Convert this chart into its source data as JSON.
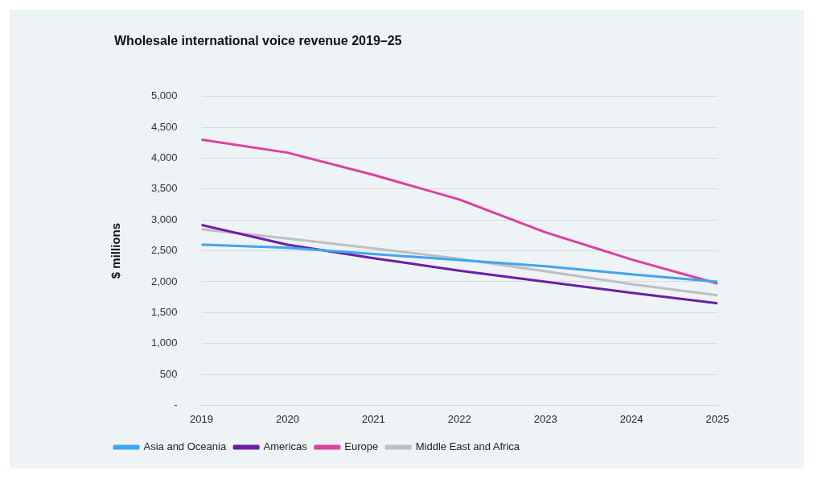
{
  "chart_data": {
    "type": "line",
    "title": "Wholesale international voice revenue 2019–25",
    "ylabel": "$ millions",
    "categories": [
      "2019",
      "2020",
      "2021",
      "2022",
      "2023",
      "2024",
      "2025"
    ],
    "series": [
      {
        "name": "Asia and Oceania",
        "color": "#3ea6f0",
        "values": [
          2600,
          2550,
          2450,
          2350,
          2250,
          2120,
          2000
        ]
      },
      {
        "name": "Americas",
        "color": "#6a1fa6",
        "values": [
          2920,
          2600,
          2380,
          2180,
          2000,
          1820,
          1650
        ]
      },
      {
        "name": "Europe",
        "color": "#e03ea0",
        "values": [
          4300,
          4090,
          3730,
          3330,
          2800,
          2360,
          1970
        ]
      },
      {
        "name": "Middle East and Africa",
        "color": "#bfbfbf",
        "values": [
          2850,
          2700,
          2540,
          2370,
          2170,
          1960,
          1780
        ]
      }
    ],
    "ylim": [
      0,
      5000
    ],
    "yticks": [
      {
        "value": 0,
        "label": "-"
      },
      500,
      {
        "value": 1000,
        "label": "1,000"
      },
      {
        "value": 1500,
        "label": "1,500"
      },
      {
        "value": 2000,
        "label": "2,000"
      },
      {
        "value": 2500,
        "label": "2,500"
      },
      {
        "value": 3000,
        "label": "3,000"
      },
      {
        "value": 3500,
        "label": "3,500"
      },
      {
        "value": 4000,
        "label": "4,000"
      },
      {
        "value": 4500,
        "label": "4,500"
      },
      {
        "value": 5000,
        "label": "5,000"
      }
    ],
    "grid": "y",
    "legend": "bottom",
    "marker": "none",
    "line_style": "solid"
  }
}
